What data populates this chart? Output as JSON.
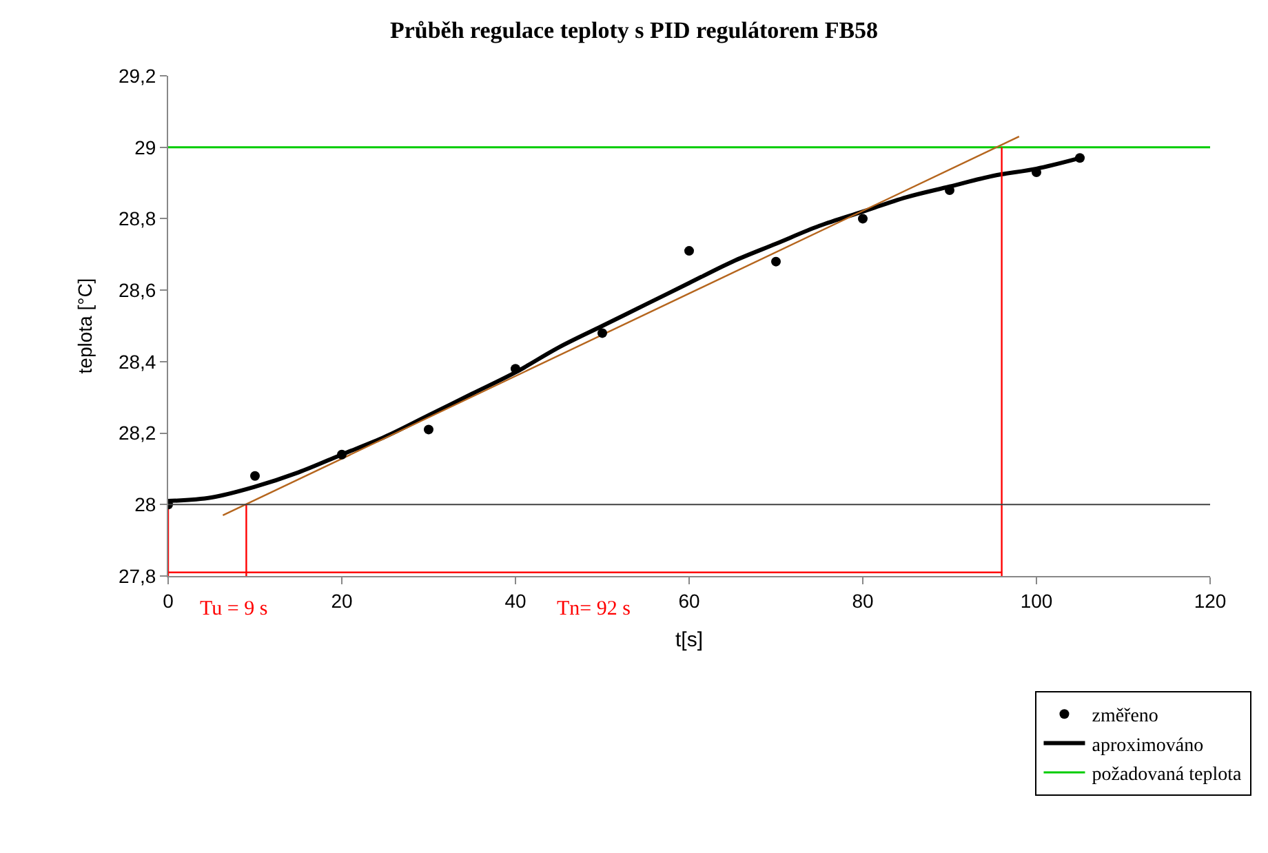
{
  "chart_data": {
    "type": "scatter",
    "title": "Průběh regulace teploty s PID regulátorem FB58",
    "xlabel": "t[s]",
    "ylabel": "teplota [°C]",
    "xlim": [
      0,
      120
    ],
    "xticks": [
      0,
      20,
      40,
      60,
      80,
      100,
      120
    ],
    "ylim": [
      27.8,
      29.2
    ],
    "yticks": [
      {
        "value": 27.8,
        "label": "27,8"
      },
      {
        "value": 28,
        "label": "28"
      },
      {
        "value": 28.2,
        "label": "28,2"
      },
      {
        "value": 28.4,
        "label": "28,4"
      },
      {
        "value": 28.6,
        "label": "28,6"
      },
      {
        "value": 28.8,
        "label": "28,8"
      },
      {
        "value": 29,
        "label": "29"
      },
      {
        "value": 29.2,
        "label": "29,2"
      }
    ],
    "legend": "bottom right",
    "series": [
      {
        "name": "změřeno",
        "marker": "circle",
        "color": "#000000",
        "x": [
          0,
          10,
          20,
          30,
          40,
          50,
          60,
          70,
          80,
          90,
          100,
          105
        ],
        "values": [
          28.0,
          28.08,
          28.14,
          28.21,
          28.38,
          28.48,
          28.71,
          28.68,
          28.8,
          28.88,
          28.93,
          28.97
        ]
      },
      {
        "name": "aproximováno",
        "type": "line",
        "color": "#000000",
        "marker": "none",
        "x": [
          0,
          5,
          10,
          15,
          20,
          25,
          30,
          35,
          40,
          45,
          50,
          55,
          60,
          65,
          70,
          75,
          80,
          85,
          90,
          95,
          100,
          105
        ],
        "values": [
          28.01,
          28.02,
          28.05,
          28.09,
          28.14,
          28.19,
          28.25,
          28.31,
          28.37,
          28.44,
          28.5,
          28.56,
          28.62,
          28.68,
          28.73,
          28.78,
          28.82,
          28.86,
          28.89,
          28.92,
          28.94,
          28.97
        ]
      },
      {
        "name": "požadovaná teplota",
        "type": "line",
        "color": "#00cc00",
        "marker": "none",
        "x": [
          0,
          120
        ],
        "values": [
          29,
          29
        ]
      },
      {
        "type": "line",
        "color": "#b5651d",
        "marker": "none",
        "x": [
          6.3,
          98
        ],
        "values": [
          27.97,
          29.03
        ]
      },
      {
        "type": "line",
        "color": "#ff0000",
        "marker": "none",
        "x": [
          0,
          0,
          null,
          9,
          9,
          null,
          96,
          96,
          null,
          0,
          96
        ],
        "values": [
          27.8,
          28.0,
          null,
          27.8,
          28.0,
          null,
          27.8,
          29.0,
          null,
          27.81,
          27.81
        ]
      }
    ],
    "ref_lines": [
      {
        "axis": "y",
        "value": 28,
        "color": "#404040"
      }
    ],
    "annotations": [
      {
        "text": "Tu = 9 s",
        "x": 7.5,
        "y": 27.8
      },
      {
        "text": "Tn= 92 s",
        "x": 49,
        "y": 27.8
      }
    ]
  }
}
